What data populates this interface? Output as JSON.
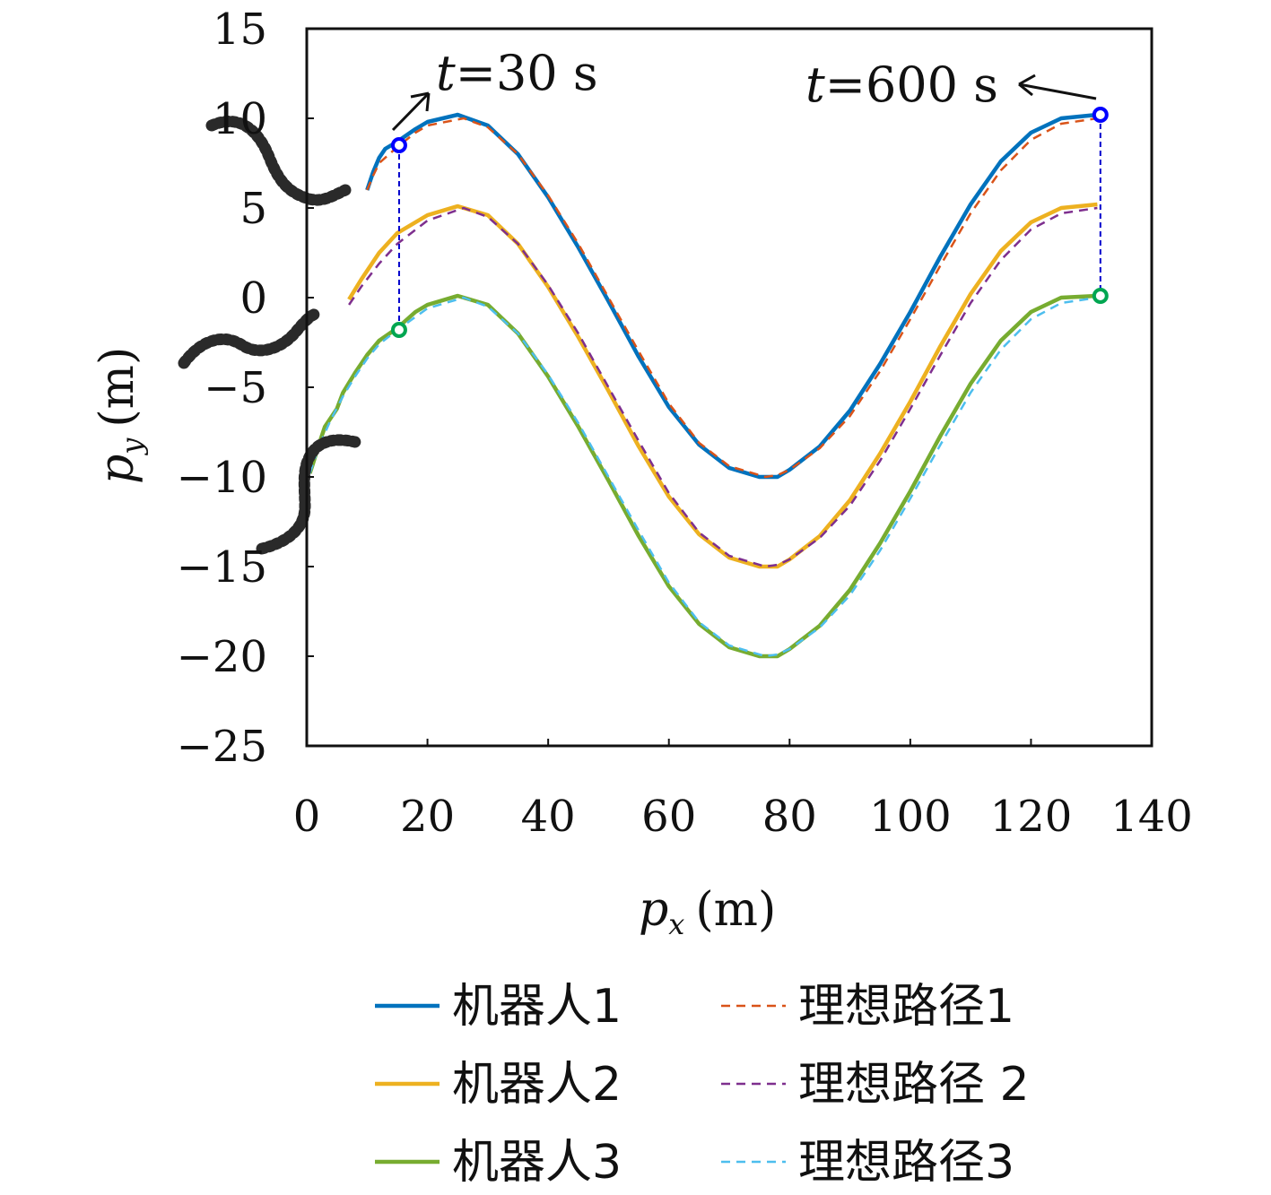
{
  "chart_data": {
    "type": "line",
    "xlabel": "p_x (m)",
    "ylabel": "p_y (m)",
    "xlim": [
      0,
      140
    ],
    "ylim": [
      -25,
      15
    ],
    "xticks": [
      "0",
      "20",
      "40",
      "60",
      "80",
      "100",
      "120",
      "140"
    ],
    "yticks": [
      "15",
      "10",
      "5",
      "0",
      "-5",
      "-10",
      "-15",
      "-20",
      "-25"
    ],
    "grid": false,
    "legend_position": "bottom",
    "series": [
      {
        "name": "机器人1",
        "style": "solid",
        "color": "#0072BD",
        "points": [
          [
            10,
            6
          ],
          [
            11,
            7
          ],
          [
            12,
            7.8
          ],
          [
            13,
            8.3
          ],
          [
            15,
            8.7
          ],
          [
            18,
            9.4
          ],
          [
            20,
            9.8
          ],
          [
            25,
            10.2
          ],
          [
            30,
            9.6
          ],
          [
            35,
            8
          ],
          [
            40,
            5.6
          ],
          [
            45,
            2.8
          ],
          [
            50,
            -0.2
          ],
          [
            55,
            -3.3
          ],
          [
            60,
            -6.1
          ],
          [
            65,
            -8.2
          ],
          [
            70,
            -9.5
          ],
          [
            75,
            -10
          ],
          [
            78,
            -10
          ],
          [
            80,
            -9.6
          ],
          [
            85,
            -8.3
          ],
          [
            90,
            -6.3
          ],
          [
            95,
            -3.7
          ],
          [
            100,
            -0.8
          ],
          [
            105,
            2.3
          ],
          [
            110,
            5.2
          ],
          [
            115,
            7.6
          ],
          [
            120,
            9.2
          ],
          [
            125,
            10
          ],
          [
            131,
            10.2
          ]
        ]
      },
      {
        "name": "机器人2",
        "style": "solid",
        "color": "#EDB120",
        "points": [
          [
            7,
            -0.1
          ],
          [
            9,
            1
          ],
          [
            12,
            2.5
          ],
          [
            15,
            3.6
          ],
          [
            20,
            4.6
          ],
          [
            25,
            5.1
          ],
          [
            30,
            4.6
          ],
          [
            35,
            3
          ],
          [
            40,
            0.6
          ],
          [
            45,
            -2.2
          ],
          [
            50,
            -5.2
          ],
          [
            55,
            -8.3
          ],
          [
            60,
            -11.1
          ],
          [
            65,
            -13.2
          ],
          [
            70,
            -14.5
          ],
          [
            75,
            -15
          ],
          [
            78,
            -15
          ],
          [
            80,
            -14.6
          ],
          [
            85,
            -13.3
          ],
          [
            90,
            -11.3
          ],
          [
            95,
            -8.7
          ],
          [
            100,
            -5.8
          ],
          [
            105,
            -2.7
          ],
          [
            110,
            0.2
          ],
          [
            115,
            2.6
          ],
          [
            120,
            4.2
          ],
          [
            125,
            5
          ],
          [
            131,
            5.2
          ]
        ]
      },
      {
        "name": "机器人3",
        "style": "solid",
        "color": "#77AC30",
        "points": [
          [
            0.5,
            -9.8
          ],
          [
            1,
            -9.3
          ],
          [
            2,
            -8.2
          ],
          [
            3,
            -7.2
          ],
          [
            4,
            -6.7
          ],
          [
            5,
            -6.2
          ],
          [
            6,
            -5.3
          ],
          [
            8,
            -4.2
          ],
          [
            10,
            -3.2
          ],
          [
            12,
            -2.4
          ],
          [
            15,
            -1.7
          ],
          [
            18,
            -0.8
          ],
          [
            20,
            -0.4
          ],
          [
            25,
            0.1
          ],
          [
            30,
            -0.4
          ],
          [
            35,
            -2
          ],
          [
            40,
            -4.4
          ],
          [
            45,
            -7.2
          ],
          [
            50,
            -10.2
          ],
          [
            55,
            -13.3
          ],
          [
            60,
            -16.1
          ],
          [
            65,
            -18.2
          ],
          [
            70,
            -19.5
          ],
          [
            75,
            -20
          ],
          [
            78,
            -20
          ],
          [
            80,
            -19.6
          ],
          [
            85,
            -18.3
          ],
          [
            90,
            -16.3
          ],
          [
            95,
            -13.7
          ],
          [
            100,
            -10.8
          ],
          [
            105,
            -7.7
          ],
          [
            110,
            -4.8
          ],
          [
            115,
            -2.4
          ],
          [
            120,
            -0.8
          ],
          [
            125,
            0
          ],
          [
            131,
            0.1
          ]
        ]
      },
      {
        "name": "理想路径1",
        "style": "dashed",
        "color": "#D95319",
        "points": [
          [
            10,
            6
          ],
          [
            11,
            6.8
          ],
          [
            12,
            7.5
          ],
          [
            15,
            8.4
          ],
          [
            18,
            9.2
          ],
          [
            20,
            9.6
          ],
          [
            26,
            10
          ],
          [
            30,
            9.5
          ],
          [
            35,
            8
          ],
          [
            40,
            5.7
          ],
          [
            45,
            3
          ],
          [
            50,
            0
          ],
          [
            55,
            -3
          ],
          [
            60,
            -5.9
          ],
          [
            65,
            -8.1
          ],
          [
            70,
            -9.4
          ],
          [
            76,
            -10
          ],
          [
            78,
            -9.9
          ],
          [
            80,
            -9.6
          ],
          [
            85,
            -8.4
          ],
          [
            90,
            -6.6
          ],
          [
            95,
            -4.1
          ],
          [
            100,
            -1.2
          ],
          [
            105,
            1.8
          ],
          [
            110,
            4.7
          ],
          [
            115,
            7.1
          ],
          [
            120,
            8.8
          ],
          [
            125,
            9.7
          ],
          [
            131,
            10
          ]
        ]
      },
      {
        "name": "理想路径 2",
        "style": "dashed",
        "color": "#7E2F8E",
        "points": [
          [
            7,
            -0.4
          ],
          [
            9,
            0.6
          ],
          [
            12,
            1.9
          ],
          [
            15,
            3
          ],
          [
            20,
            4.3
          ],
          [
            26,
            5
          ],
          [
            30,
            4.5
          ],
          [
            35,
            3
          ],
          [
            40,
            0.7
          ],
          [
            45,
            -2
          ],
          [
            50,
            -5
          ],
          [
            55,
            -8
          ],
          [
            60,
            -10.9
          ],
          [
            65,
            -13.1
          ],
          [
            70,
            -14.4
          ],
          [
            76,
            -15
          ],
          [
            78,
            -14.9
          ],
          [
            80,
            -14.6
          ],
          [
            85,
            -13.4
          ],
          [
            90,
            -11.6
          ],
          [
            95,
            -9.1
          ],
          [
            100,
            -6.2
          ],
          [
            105,
            -3.2
          ],
          [
            110,
            -0.3
          ],
          [
            115,
            2.1
          ],
          [
            120,
            3.8
          ],
          [
            125,
            4.7
          ],
          [
            131,
            5
          ]
        ]
      },
      {
        "name": "理想路径3",
        "style": "dashed",
        "color": "#4DBEEE",
        "points": [
          [
            0.5,
            -9.8
          ],
          [
            2,
            -8.3
          ],
          [
            4,
            -6.8
          ],
          [
            6,
            -5.5
          ],
          [
            8,
            -4.4
          ],
          [
            10,
            -3.4
          ],
          [
            12,
            -2.6
          ],
          [
            15,
            -1.8
          ],
          [
            20,
            -0.6
          ],
          [
            26,
            0
          ],
          [
            30,
            -0.5
          ],
          [
            35,
            -2
          ],
          [
            40,
            -4.3
          ],
          [
            45,
            -7
          ],
          [
            50,
            -10
          ],
          [
            55,
            -13
          ],
          [
            60,
            -15.9
          ],
          [
            65,
            -18.1
          ],
          [
            70,
            -19.4
          ],
          [
            76,
            -20
          ],
          [
            78,
            -19.9
          ],
          [
            80,
            -19.6
          ],
          [
            85,
            -18.4
          ],
          [
            90,
            -16.6
          ],
          [
            95,
            -14.1
          ],
          [
            100,
            -11.2
          ],
          [
            105,
            -8.2
          ],
          [
            110,
            -5.3
          ],
          [
            115,
            -2.9
          ],
          [
            120,
            -1.2
          ],
          [
            125,
            -0.3
          ],
          [
            131,
            0
          ]
        ]
      }
    ],
    "markers": [
      {
        "x": 15.3,
        "y": 8.5,
        "color": "#0000FF"
      },
      {
        "x": 15.3,
        "y": -1.8,
        "color": "#00A651"
      },
      {
        "x": 131.5,
        "y": 10.2,
        "color": "#0000FF"
      },
      {
        "x": 131.5,
        "y": 0.1,
        "color": "#00A651"
      }
    ],
    "annotations": [
      {
        "label": "t=30 s",
        "t": "t",
        "rest": "=30 s"
      },
      {
        "label": "t=600 s",
        "t": "t",
        "rest": "=600 s"
      }
    ]
  },
  "legend": [
    {
      "label": "机器人1",
      "color": "#0072BD",
      "style": "solid"
    },
    {
      "label": "理想路径1",
      "color": "#D95319",
      "style": "dashed"
    },
    {
      "label": "机器人2",
      "color": "#EDB120",
      "style": "solid"
    },
    {
      "label": "理想路径 2",
      "color": "#7E2F8E",
      "style": "dashed"
    },
    {
      "label": "机器人3",
      "color": "#77AC30",
      "style": "solid"
    },
    {
      "label": "理想路径3",
      "color": "#4DBEEE",
      "style": "dashed"
    }
  ],
  "axis_text": {
    "x_p": "p",
    "x_sub": "x",
    "x_unit": "(m)",
    "y_p": "p",
    "y_sub": "y",
    "y_unit": "(m)"
  }
}
